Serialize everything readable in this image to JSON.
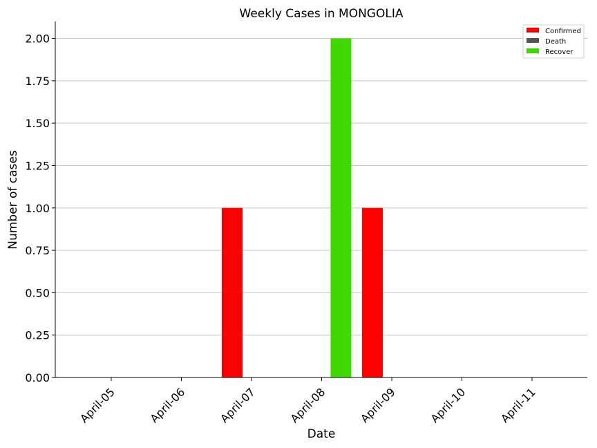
{
  "chart_data": {
    "type": "bar",
    "title": "Weekly Cases in MONGOLIA",
    "xlabel": "Date",
    "ylabel": "Number of cases",
    "categories": [
      "April-05",
      "April-06",
      "April-07",
      "April-08",
      "April-09",
      "April-10",
      "April-11"
    ],
    "series": [
      {
        "name": "Confirmed",
        "color": "#ff0000",
        "values": [
          0,
          0,
          1,
          0,
          1,
          0,
          0
        ]
      },
      {
        "name": "Death",
        "color": "#555555",
        "values": [
          0,
          0,
          0,
          0,
          0,
          0,
          0
        ]
      },
      {
        "name": "Recover",
        "color": "#3fd800",
        "values": [
          0,
          0,
          0,
          2,
          0,
          0,
          0
        ]
      }
    ],
    "ylim": [
      0,
      2.1
    ],
    "yticks": [
      "0.00",
      "0.25",
      "0.50",
      "0.75",
      "1.00",
      "1.25",
      "1.50",
      "1.75",
      "2.00"
    ],
    "grid": "horizontal",
    "legend_position": "top-right"
  }
}
